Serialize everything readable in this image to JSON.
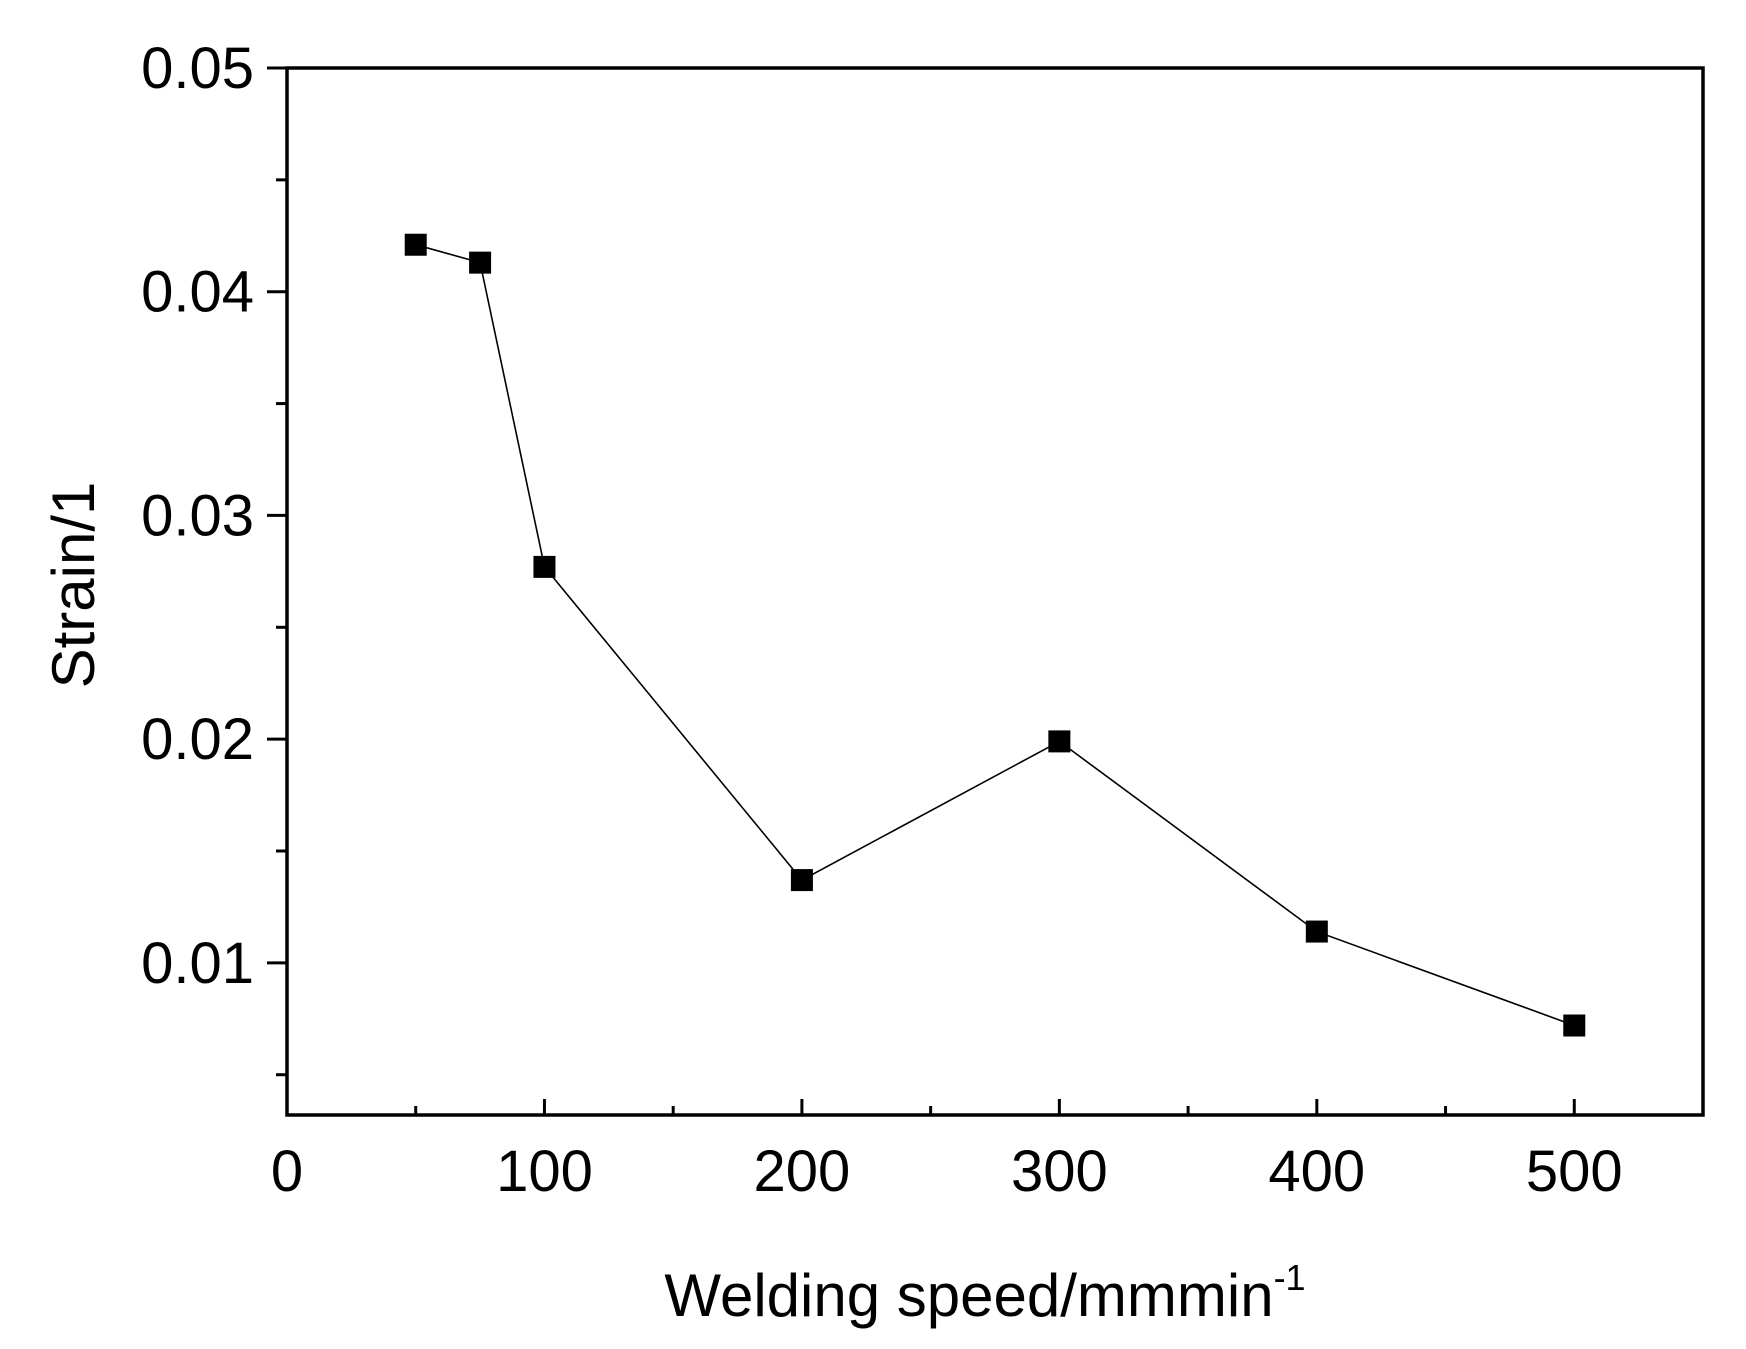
{
  "chart_data": {
    "type": "line",
    "title": "",
    "xlabel": "Welding speed/mmmin",
    "xlabel_superscript": "-1",
    "ylabel": "Strain/1",
    "xlim": [
      0,
      550
    ],
    "ylim": [
      0.0032,
      0.05
    ],
    "x_ticks": [
      0,
      100,
      200,
      300,
      400,
      500
    ],
    "x_tick_labels": [
      "0",
      "100",
      "200",
      "300",
      "400",
      "500"
    ],
    "x_minor_ticks": [
      50,
      150,
      250,
      350,
      450
    ],
    "y_ticks": [
      0.01,
      0.02,
      0.03,
      0.04,
      0.05
    ],
    "y_tick_labels": [
      "0.01",
      "0.02",
      "0.03",
      "0.04",
      "0.05"
    ],
    "y_minor_ticks": [
      0.005,
      0.015,
      0.025,
      0.035,
      0.045
    ],
    "grid": false,
    "legend": "none",
    "series": [
      {
        "name": "Strain",
        "marker": "square",
        "color": "#000000",
        "x": [
          50,
          75,
          100,
          200,
          300,
          400,
          500
        ],
        "y": [
          0.0421,
          0.0413,
          0.0277,
          0.0137,
          0.0199,
          0.0114,
          0.0072
        ]
      }
    ]
  }
}
